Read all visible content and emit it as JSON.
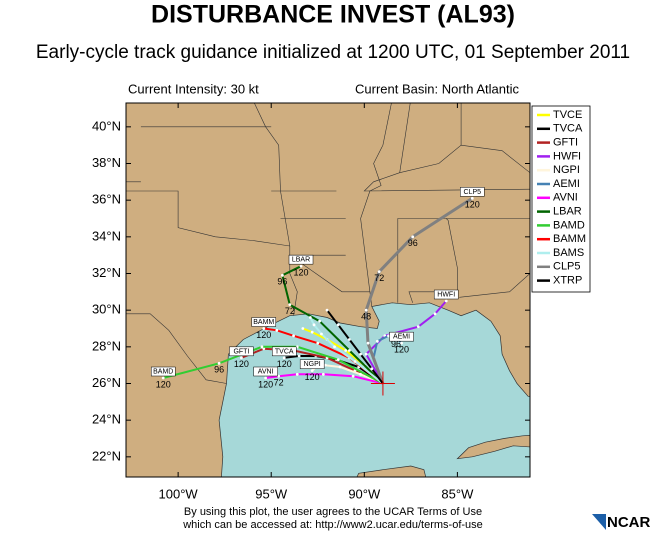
{
  "title": "DISTURBANCE INVEST (AL93)",
  "subtitle": "Early-cycle track guidance initialized at 1200 UTC, 01 September 2011",
  "intensity": "Current Intensity: 30 kt",
  "basin": "Current Basin: North Atlantic",
  "map": {
    "lon_range": [
      102.8,
      81.1
    ],
    "lat_range": [
      20.9,
      41.3
    ],
    "lat_ticks": [
      {
        "value": 40,
        "label": "40°N"
      },
      {
        "value": 38,
        "label": "38°N"
      },
      {
        "value": 36,
        "label": "36°N"
      },
      {
        "value": 34,
        "label": "34°N"
      },
      {
        "value": 32,
        "label": "32°N"
      },
      {
        "value": 30,
        "label": "30°N"
      },
      {
        "value": 28,
        "label": "28°N"
      },
      {
        "value": 26,
        "label": "26°N"
      },
      {
        "value": 24,
        "label": "24°N"
      },
      {
        "value": 22,
        "label": "22°N"
      }
    ],
    "lon_ticks": [
      {
        "value": 100,
        "label": "100°W"
      },
      {
        "value": 95,
        "label": "95°W"
      },
      {
        "value": 90,
        "label": "90°W"
      },
      {
        "value": 85,
        "label": "85°W"
      }
    ],
    "current_position": {
      "lon": 89,
      "lat": 26
    },
    "tracks": [
      {
        "name": "TVCE",
        "color": "#ffff00",
        "end_label": false,
        "lon": [
          89,
          90,
          91,
          92,
          92.8,
          93.3
        ],
        "lat": [
          26,
          27,
          27.8,
          28.4,
          28.8,
          29.0
        ],
        "hours": [
          null,
          null,
          null,
          null,
          null,
          null
        ]
      },
      {
        "name": "TVCA",
        "color": "#000000",
        "end_label": true,
        "lon": [
          89,
          90.3,
          91.5,
          92.6,
          93.5,
          94.3
        ],
        "lat": [
          26,
          26.9,
          27.3,
          27.5,
          27.5,
          27.4
        ],
        "hours": [
          null,
          null,
          null,
          null,
          null,
          120
        ]
      },
      {
        "name": "GFTI",
        "color": "#b22222",
        "end_label": true,
        "lon": [
          89,
          90.5,
          92,
          93.8,
          95.4,
          96.6
        ],
        "lat": [
          26,
          26.7,
          27.4,
          27.8,
          27.9,
          27.4
        ],
        "hours": [
          null,
          null,
          null,
          null,
          null,
          120
        ]
      },
      {
        "name": "HWFI",
        "color": "#a020f0",
        "end_label": true,
        "lon": [
          89,
          89.9,
          88.9,
          87.1,
          86.2,
          85.6
        ],
        "lat": [
          26,
          27.6,
          28.6,
          29.1,
          29.8,
          30.5
        ],
        "hours": [
          null,
          null,
          null,
          null,
          null,
          null
        ]
      },
      {
        "name": "NGPI",
        "color": "#fff5dc",
        "end_label": true,
        "lon": [
          89,
          90.2,
          91.3,
          92.1,
          92.6,
          92.8
        ],
        "lat": [
          26,
          26.5,
          26.9,
          27.0,
          26.9,
          26.7
        ],
        "hours": [
          null,
          null,
          null,
          null,
          null,
          120
        ]
      },
      {
        "name": "AEMI",
        "color": "#4682b4",
        "end_label": true,
        "lon": [
          89,
          89.5,
          89.3,
          88.7,
          88.3,
          88.0
        ],
        "lat": [
          26,
          27.4,
          28.3,
          28.6,
          28.5,
          28.2
        ],
        "hours": [
          null,
          null,
          null,
          null,
          96,
          120
        ]
      },
      {
        "name": "AVNI",
        "color": "#ff00ff",
        "end_label": true,
        "lon": [
          89,
          90.6,
          92.2,
          93.6,
          94.6,
          95.3
        ],
        "lat": [
          26,
          26.4,
          26.5,
          26.5,
          26.4,
          26.3
        ],
        "hours": [
          null,
          null,
          null,
          null,
          72,
          120
        ]
      },
      {
        "name": "LBAR",
        "color": "#006400",
        "end_label": true,
        "lon": [
          89,
          90.8,
          92.4,
          94.0,
          94.4,
          93.4
        ],
        "lat": [
          26,
          27.8,
          29.4,
          30.3,
          31.9,
          32.4
        ],
        "hours": [
          null,
          null,
          null,
          72,
          96,
          120
        ]
      },
      {
        "name": "BAMD",
        "color": "#32cd32",
        "end_label": true,
        "lon": [
          89,
          91.4,
          93.6,
          95.5,
          97.8,
          100.8
        ],
        "lat": [
          26,
          27.3,
          28.0,
          28.0,
          27.1,
          26.3
        ],
        "hours": [
          null,
          null,
          null,
          null,
          96,
          120
        ]
      },
      {
        "name": "BAMM",
        "color": "#ff0000",
        "end_label": true,
        "lon": [
          89,
          90.8,
          92.5,
          93.8,
          94.7,
          95.4
        ],
        "lat": [
          26,
          27.4,
          28.2,
          28.6,
          28.9,
          29.0
        ],
        "hours": [
          null,
          null,
          null,
          null,
          null,
          120
        ]
      },
      {
        "name": "BAMS",
        "color": "#afeeee",
        "end_label": false,
        "lon": [
          89,
          90.5,
          91.6,
          92.3,
          92.7,
          92.9
        ],
        "lat": [
          26,
          27.2,
          28.0,
          28.7,
          29.2,
          29.6
        ],
        "hours": [
          null,
          null,
          null,
          null,
          null,
          null
        ]
      },
      {
        "name": "CLP5",
        "color": "#808080",
        "end_label": true,
        "lon": [
          89,
          89.8,
          89.9,
          89.2,
          87.4,
          84.2
        ],
        "lat": [
          26,
          28.2,
          30.0,
          32.1,
          34.0,
          36.1
        ],
        "hours": [
          null,
          null,
          48,
          72,
          96,
          120
        ]
      },
      {
        "name": "XTRP",
        "color": "#000000",
        "end_label": false,
        "lon": [
          89,
          89.6,
          90.2,
          90.8,
          91.4,
          92
        ],
        "lat": [
          26,
          26.8,
          27.6,
          28.4,
          29.2,
          30.0
        ],
        "hours": [
          null,
          null,
          null,
          null,
          null,
          null
        ]
      }
    ]
  },
  "footer": [
    "By using this plot, the user agrees to the UCAR Terms of Use",
    "which can be accessed at: http://www2.ucar.edu/terms-of-use"
  ],
  "logo": "NCAR"
}
